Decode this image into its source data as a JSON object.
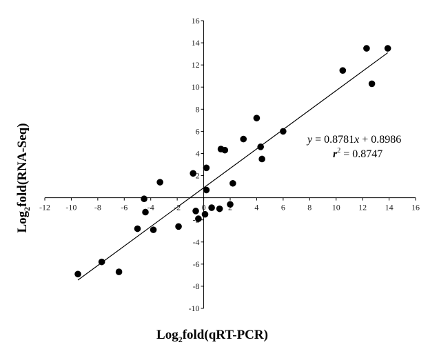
{
  "chart_data": {
    "type": "scatter",
    "title": "",
    "xlabel_main": "Log",
    "xlabel_sub": "2",
    "xlabel_rest": "fold(qRT-PCR)",
    "ylabel_main": "Log",
    "ylabel_sub": "2",
    "ylabel_rest": "fold(RNA-Seq)",
    "xlim": [
      -12,
      16
    ],
    "ylim": [
      -10,
      16
    ],
    "x_ticks": [
      -12,
      -10,
      -8,
      -6,
      -4,
      -2,
      0,
      2,
      4,
      6,
      8,
      10,
      12,
      14,
      16
    ],
    "y_ticks": [
      -10,
      -8,
      -6,
      -4,
      -2,
      2,
      4,
      6,
      8,
      10,
      12,
      14,
      16
    ],
    "x_tick_labels": [
      "-12",
      "-10",
      "-8",
      "-6",
      "-4",
      "-2",
      "0",
      "2",
      "4",
      "6",
      "8",
      "10",
      "12",
      "14",
      "16"
    ],
    "y_tick_labels": [
      "-10",
      "-8",
      "-6",
      "-4",
      "-2",
      "2",
      "4",
      "6",
      "8",
      "10",
      "12",
      "14",
      "16"
    ],
    "grid": false,
    "points": [
      {
        "x": -9.5,
        "y": -6.9
      },
      {
        "x": -7.7,
        "y": -5.8
      },
      {
        "x": -6.4,
        "y": -6.7
      },
      {
        "x": -5.0,
        "y": -2.8
      },
      {
        "x": -4.4,
        "y": -1.3
      },
      {
        "x": -4.5,
        "y": -0.1
      },
      {
        "x": -3.8,
        "y": -2.9
      },
      {
        "x": -3.3,
        "y": 1.4
      },
      {
        "x": -1.9,
        "y": -2.6
      },
      {
        "x": -0.8,
        "y": 2.2
      },
      {
        "x": -0.6,
        "y": -1.2
      },
      {
        "x": -0.4,
        "y": -1.9
      },
      {
        "x": 0.1,
        "y": -1.5
      },
      {
        "x": 0.2,
        "y": 0.7
      },
      {
        "x": 0.2,
        "y": 2.7
      },
      {
        "x": 0.6,
        "y": -0.9
      },
      {
        "x": 1.2,
        "y": -1.0
      },
      {
        "x": 1.3,
        "y": 4.4
      },
      {
        "x": 1.6,
        "y": 4.3
      },
      {
        "x": 2.0,
        "y": -0.6
      },
      {
        "x": 2.2,
        "y": 1.3
      },
      {
        "x": 3.0,
        "y": 5.3
      },
      {
        "x": 4.0,
        "y": 7.2
      },
      {
        "x": 4.3,
        "y": 4.6
      },
      {
        "x": 4.4,
        "y": 3.5
      },
      {
        "x": 6.0,
        "y": 6.0
      },
      {
        "x": 10.5,
        "y": 11.5
      },
      {
        "x": 12.3,
        "y": 13.5
      },
      {
        "x": 12.7,
        "y": 10.3
      },
      {
        "x": 13.9,
        "y": 13.5
      }
    ],
    "trendline": {
      "slope": 0.8781,
      "intercept": 0.8986,
      "x_range": [
        -9.5,
        13.9
      ]
    },
    "equation_label": {
      "y_var": "y",
      "eq_mid": " = 0.8781",
      "x_var": "x",
      "eq_end": " + 0.8986",
      "r_var": "r",
      "r_sup": "2",
      "r_val": " = 0.8747"
    }
  }
}
